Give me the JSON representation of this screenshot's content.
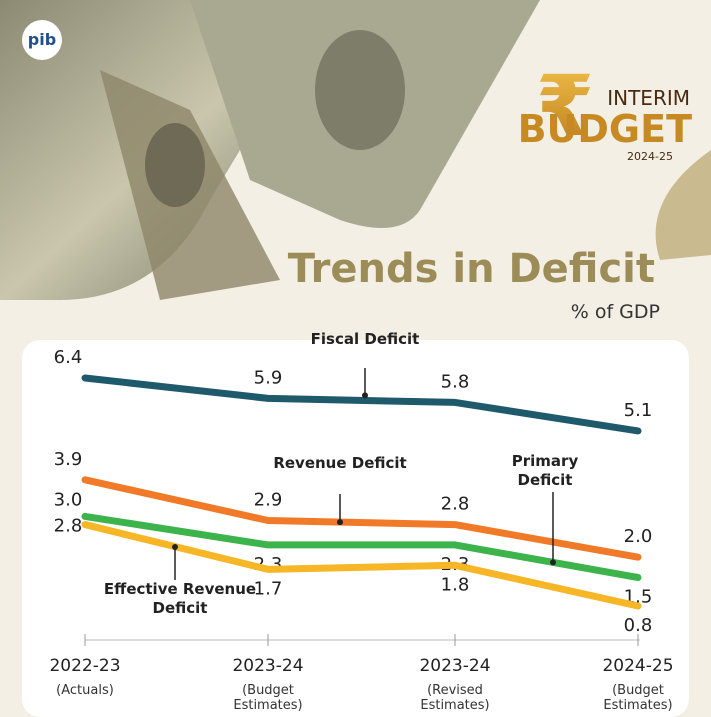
{
  "chart_data": {
    "type": "line",
    "logo_text": "pib",
    "badge": {
      "symbol": "₹",
      "line1": "INTERIM",
      "line2": "BUDGET",
      "line3": "2024-25"
    },
    "title": "Trends in Deficit",
    "subtitle": "% of GDP",
    "categories": [
      "2022-23",
      "2023-24",
      "2023-24",
      "2024-25"
    ],
    "category_notes": [
      [
        "(Actuals)"
      ],
      [
        "(Budget",
        "Estimates)"
      ],
      [
        "(Revised",
        "Estimates)"
      ],
      [
        "(Budget",
        "Estimates)"
      ]
    ],
    "series": [
      {
        "name": "Fiscal Deficit",
        "color": "#1e5a6b",
        "values": [
          6.4,
          5.9,
          5.8,
          5.1
        ],
        "value_labels": [
          "6.4",
          "5.9",
          "5.8",
          "5.1"
        ]
      },
      {
        "name": "Revenue Deficit",
        "color": "#f07a28",
        "values": [
          3.9,
          2.9,
          2.8,
          2.0
        ],
        "value_labels": [
          "3.9",
          "2.9",
          "2.8",
          "2.0"
        ]
      },
      {
        "name": "Primary Deficit",
        "color": "#3cb44b",
        "values": [
          3.0,
          2.3,
          2.3,
          1.5
        ],
        "value_labels": [
          "3.0",
          "2.3",
          "2.3",
          "1.5"
        ]
      },
      {
        "name": "Effective Revenue Deficit",
        "color": "#f6b626",
        "values": [
          2.8,
          1.7,
          1.8,
          0.8
        ],
        "value_labels": [
          "2.8",
          "1.7",
          "1.8",
          "0.8"
        ]
      }
    ]
  }
}
